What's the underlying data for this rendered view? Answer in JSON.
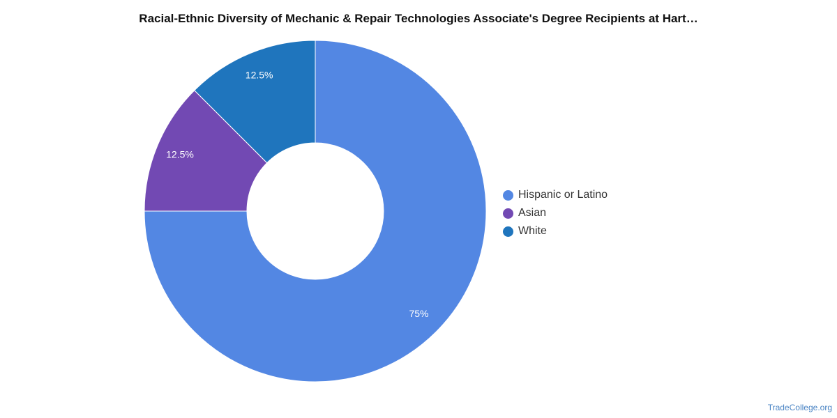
{
  "chart_data": {
    "type": "pie",
    "variant": "donut",
    "title": "Racial-Ethnic Diversity of Mechanic & Repair Technologies Associate's Degree Recipients at Hart…",
    "slices": [
      {
        "label": "Hispanic or Latino",
        "value": 75,
        "value_label": "75%",
        "color": "#5387e3"
      },
      {
        "label": "Asian",
        "value": 12.5,
        "value_label": "12.5%",
        "color": "#7249b3"
      },
      {
        "label": "White",
        "value": 12.5,
        "value_label": "12.5%",
        "color": "#1f75bd"
      }
    ],
    "legend_position": "right",
    "start_angle": "12 o'clock",
    "direction": "clockwise"
  },
  "watermark": "TradeCollege.org"
}
